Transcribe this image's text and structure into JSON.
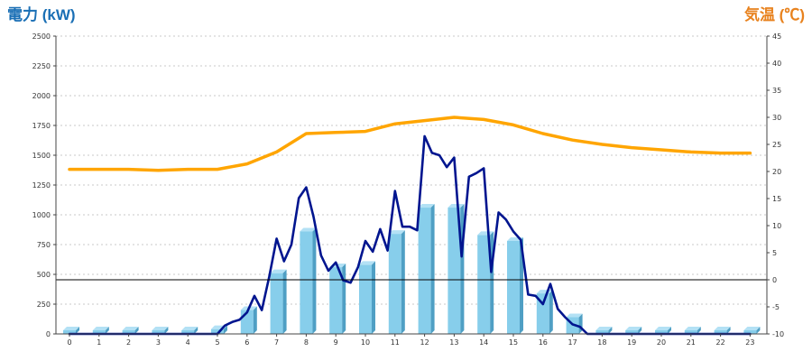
{
  "chart_data": {
    "type": "bar",
    "left_axis_title": "電力 (kW)",
    "right_axis_title": "気温 (℃)",
    "ylim_left": [
      0,
      2500
    ],
    "ylim_right": [
      -10,
      45
    ],
    "yticks_left": [
      0,
      250,
      500,
      750,
      1000,
      1250,
      1500,
      1750,
      2000,
      2250,
      2500
    ],
    "yticks_right": [
      -10,
      -5,
      0,
      5,
      10,
      15,
      20,
      25,
      30,
      35,
      40,
      45
    ],
    "categories": [
      "0",
      "1",
      "2",
      "3",
      "4",
      "5",
      "6",
      "7",
      "8",
      "9",
      "10",
      "11",
      "12",
      "13",
      "14",
      "15",
      "16",
      "17",
      "18",
      "19",
      "20",
      "21",
      "22",
      "23"
    ],
    "grid": true,
    "colors": {
      "left_title": "#1a6fb5",
      "right_title": "#e8821e",
      "bar_front": "#87ceeb",
      "bar_side": "#4f9fc4",
      "bar_top": "#b3e1f5",
      "power_line": "#00158f",
      "temp_line": "#ffa500",
      "zero_line": "#000000"
    },
    "series": [
      {
        "type": "bar",
        "axis": "left",
        "values": [
          0,
          0,
          0,
          0,
          0,
          10,
          170,
          480,
          830,
          530,
          550,
          810,
          1030,
          1030,
          800,
          750,
          310,
          110,
          0,
          0,
          0,
          0,
          0,
          0
        ]
      },
      {
        "type": "line",
        "axis": "left",
        "x": [
          0,
          1,
          2,
          3,
          4,
          5,
          5.25,
          5.5,
          5.75,
          6,
          6.25,
          6.5,
          6.75,
          7,
          7.25,
          7.5,
          7.75,
          8,
          8.25,
          8.5,
          8.75,
          9,
          9.25,
          9.5,
          9.75,
          10,
          10.25,
          10.5,
          10.75,
          11,
          11.25,
          11.5,
          11.75,
          12,
          12.25,
          12.5,
          12.75,
          13,
          13.25,
          13.5,
          13.75,
          14,
          14.25,
          14.5,
          14.75,
          15,
          15.25,
          15.5,
          15.75,
          16,
          16.25,
          16.5,
          16.75,
          17,
          17.25,
          17.5,
          18,
          19,
          20,
          21,
          22,
          23
        ],
        "values": [
          0,
          0,
          0,
          0,
          0,
          0,
          70,
          100,
          120,
          180,
          320,
          200,
          480,
          800,
          610,
          750,
          1140,
          1230,
          980,
          660,
          530,
          600,
          450,
          430,
          560,
          780,
          690,
          880,
          700,
          1200,
          900,
          900,
          870,
          1660,
          1520,
          1500,
          1400,
          1480,
          650,
          1320,
          1350,
          1390,
          520,
          1020,
          960,
          860,
          790,
          330,
          320,
          250,
          420,
          210,
          140,
          80,
          60,
          0,
          0,
          0,
          0,
          0,
          0,
          0
        ]
      },
      {
        "type": "line",
        "axis": "right",
        "x": [
          0,
          1,
          2,
          3,
          4,
          5,
          6,
          7,
          8,
          9,
          10,
          11,
          12,
          13,
          14,
          15,
          16,
          17,
          18,
          19,
          20,
          21,
          22,
          23
        ],
        "values": [
          20.4,
          20.4,
          20.4,
          20.2,
          20.4,
          20.4,
          21.4,
          23.6,
          27.0,
          27.2,
          27.4,
          28.8,
          29.4,
          30.0,
          29.6,
          28.6,
          27.0,
          25.8,
          25.0,
          24.4,
          24.0,
          23.6,
          23.4,
          23.4
        ]
      }
    ]
  }
}
